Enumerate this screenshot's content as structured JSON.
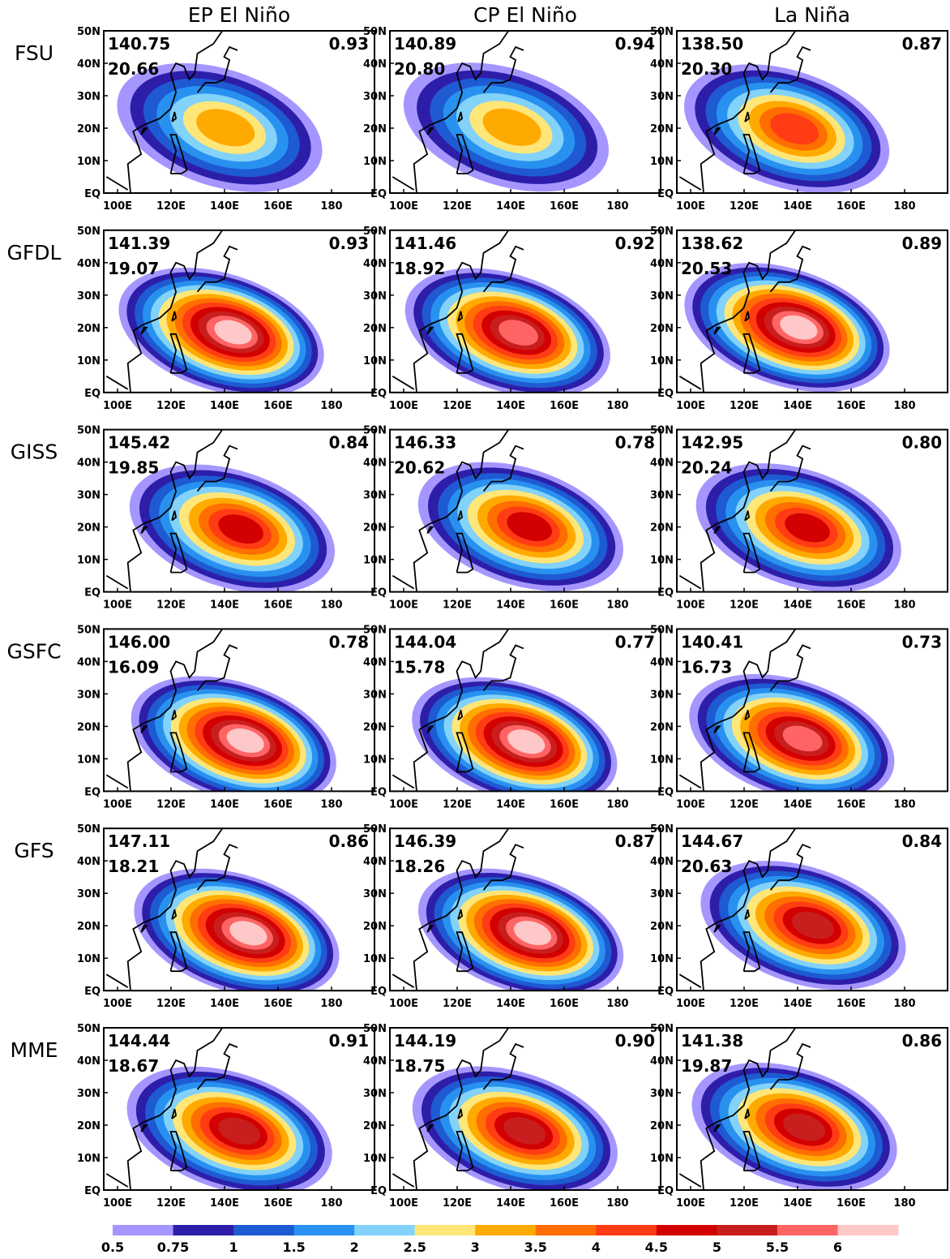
{
  "columns": [
    "EP El Niño",
    "CP El Niño",
    "La Niña"
  ],
  "rows": [
    {
      "label": "FSU",
      "panels": [
        {
          "lon": "140.75",
          "lat": "20.66",
          "corr": "0.93"
        },
        {
          "lon": "140.89",
          "lat": "20.80",
          "corr": "0.94"
        },
        {
          "lon": "138.50",
          "lat": "20.30",
          "corr": "0.87"
        }
      ]
    },
    {
      "label": "GFDL",
      "panels": [
        {
          "lon": "141.39",
          "lat": "19.07",
          "corr": "0.93"
        },
        {
          "lon": "141.46",
          "lat": "18.92",
          "corr": "0.92"
        },
        {
          "lon": "138.62",
          "lat": "20.53",
          "corr": "0.89"
        }
      ]
    },
    {
      "label": "GISS",
      "panels": [
        {
          "lon": "145.42",
          "lat": "19.85",
          "corr": "0.84"
        },
        {
          "lon": "146.33",
          "lat": "20.62",
          "corr": "0.78"
        },
        {
          "lon": "142.95",
          "lat": "20.24",
          "corr": "0.80"
        }
      ]
    },
    {
      "label": "GSFC",
      "panels": [
        {
          "lon": "146.00",
          "lat": "16.09",
          "corr": "0.78"
        },
        {
          "lon": "144.04",
          "lat": "15.78",
          "corr": "0.77"
        },
        {
          "lon": "140.41",
          "lat": "16.73",
          "corr": "0.73"
        }
      ]
    },
    {
      "label": "GFS",
      "panels": [
        {
          "lon": "147.11",
          "lat": "18.21",
          "corr": "0.86"
        },
        {
          "lon": "146.39",
          "lat": "18.26",
          "corr": "0.87"
        },
        {
          "lon": "144.67",
          "lat": "20.63",
          "corr": "0.84"
        }
      ]
    },
    {
      "label": "MME",
      "panels": [
        {
          "lon": "144.44",
          "lat": "18.67",
          "corr": "0.91"
        },
        {
          "lon": "144.19",
          "lat": "18.75",
          "corr": "0.90"
        },
        {
          "lon": "141.38",
          "lat": "19.87",
          "corr": "0.86"
        }
      ]
    }
  ],
  "x_ticks": [
    "100E",
    "120E",
    "140E",
    "160E",
    "180"
  ],
  "y_ticks": [
    "EQ",
    "10N",
    "20N",
    "30N",
    "40N",
    "50N"
  ],
  "colorbar": {
    "labels": [
      "0.5",
      "0.75",
      "1",
      "1.5",
      "2",
      "2.5",
      "3",
      "3.5",
      "4",
      "4.5",
      "5",
      "5.5",
      "6"
    ],
    "colors": [
      "#a596ff",
      "#2d1eaa",
      "#1e5ad2",
      "#2891f0",
      "#82d2fa",
      "#ffe678",
      "#ffaa00",
      "#ff6e00",
      "#ff3c14",
      "#d20000",
      "#c81e1e",
      "#ff6464",
      "#ffc8c8"
    ]
  }
}
